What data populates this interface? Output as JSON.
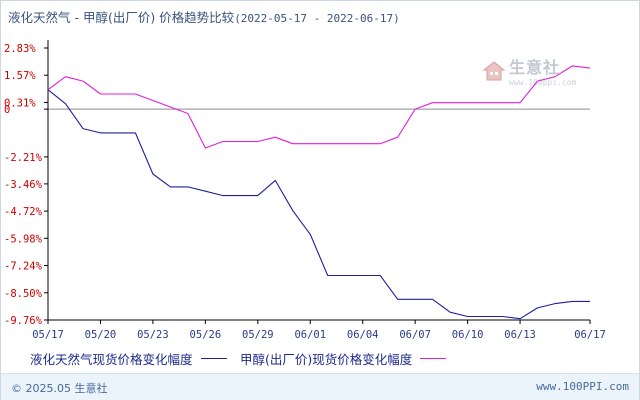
{
  "title": {
    "main": "液化天然气 - 甲醇(出厂价) 价格趋势比较",
    "range": "(2022-05-17 - 2022-06-17)"
  },
  "watermark": {
    "name": "生意社",
    "url": "www.100ppi.com"
  },
  "footer": {
    "copyright": "© 2025.05 生意社",
    "site": "www.100PPI.com"
  },
  "colors": {
    "lng": "#1f1fa0",
    "methanol": "#e020d8",
    "axis": "#000000",
    "grid": "#c8c8c8"
  },
  "chart_data": {
    "type": "line",
    "title": "液化天然气 - 甲醇(出厂价) 价格趋势比较(2022-05-17 - 2022-06-17)",
    "xlabel": "",
    "ylabel": "",
    "x_ticks": [
      "05/17",
      "05/20",
      "05/23",
      "05/26",
      "05/29",
      "06/01",
      "06/04",
      "06/07",
      "06/10",
      "06/13",
      "06/17"
    ],
    "y_ticks": [
      "2.83%",
      "1.57%",
      "0.31%",
      "0",
      "-2.21%",
      "-3.46%",
      "-4.72%",
      "-5.98%",
      "-7.24%",
      "-8.50%",
      "-9.76%"
    ],
    "ylim": [
      -9.76,
      2.83
    ],
    "grid": "horizontal reference line at 0",
    "legend_position": "bottom",
    "x": [
      "05/17",
      "05/18",
      "05/19",
      "05/20",
      "05/21",
      "05/22",
      "05/23",
      "05/24",
      "05/25",
      "05/26",
      "05/27",
      "05/28",
      "05/29",
      "05/30",
      "05/31",
      "06/01",
      "06/02",
      "06/03",
      "06/04",
      "06/05",
      "06/06",
      "06/07",
      "06/08",
      "06/09",
      "06/10",
      "06/11",
      "06/12",
      "06/13",
      "06/14",
      "06/15",
      "06/16",
      "06/17"
    ],
    "series": [
      {
        "name": "液化天然气现货价格变化幅度",
        "values": [
          0.9,
          0.25,
          -0.9,
          -1.1,
          -1.1,
          -1.1,
          -3.0,
          -3.6,
          -3.6,
          -3.8,
          -4.0,
          -4.0,
          -4.0,
          -3.3,
          -4.7,
          -5.8,
          -7.7,
          -7.7,
          -7.7,
          -7.7,
          -8.8,
          -8.8,
          -8.8,
          -9.4,
          -9.6,
          -9.6,
          -9.6,
          -9.7,
          -9.2,
          -9.0,
          -8.9,
          -8.9
        ]
      },
      {
        "name": "甲醇(出厂价)现货价格变化幅度",
        "values": [
          0.9,
          1.5,
          1.3,
          0.7,
          0.7,
          0.7,
          0.4,
          0.1,
          -0.2,
          -1.8,
          -1.5,
          -1.5,
          -1.5,
          -1.3,
          -1.6,
          -1.6,
          -1.6,
          -1.6,
          -1.6,
          -1.6,
          -1.3,
          0.0,
          0.3,
          0.3,
          0.3,
          0.3,
          0.3,
          0.3,
          1.3,
          1.5,
          2.0,
          1.9
        ]
      }
    ]
  }
}
